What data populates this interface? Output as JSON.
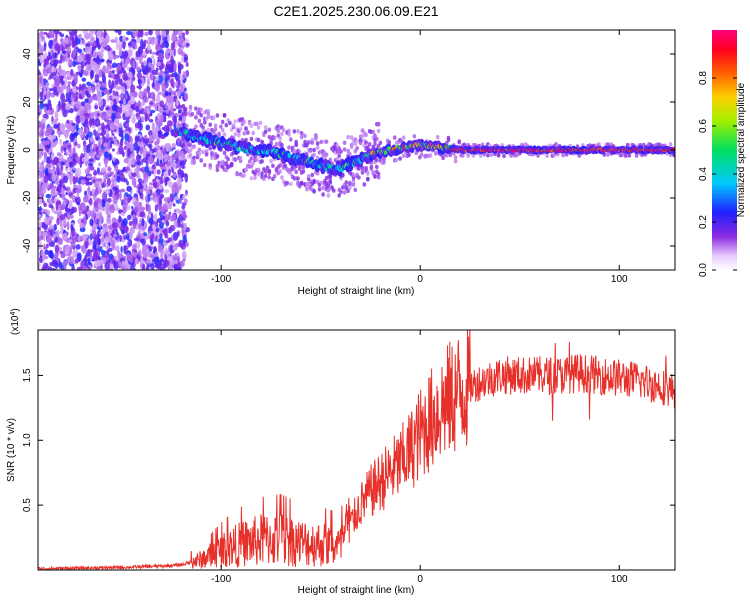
{
  "title": "C2E1.2025.230.06.09.E21",
  "chart_data": [
    {
      "type": "heatmap",
      "xlabel": "Height of straight line (km)",
      "ylabel": "Frequency (Hz)",
      "xlim": [
        -192,
        128
      ],
      "ylim": [
        -50,
        50
      ],
      "xticks": [
        -100,
        0,
        100
      ],
      "yticks": [
        -40,
        -20,
        0,
        20,
        40
      ],
      "colorbar": {
        "label": "Normalized spectral amplitude",
        "range": [
          0,
          1
        ],
        "ticks": [
          "0.0",
          "0.2",
          "0.4",
          "0.6",
          "0.8"
        ]
      },
      "ridge": {
        "x": [
          -122,
          -115,
          -105,
          -95,
          -85,
          -75,
          -65,
          -55,
          -48,
          -42,
          -35,
          -28,
          -22,
          -15,
          -8,
          0,
          10,
          20,
          40,
          60,
          80,
          100,
          128
        ],
        "y": [
          8,
          6,
          4,
          2,
          0,
          -1,
          -3,
          -5,
          -7,
          -8,
          -6,
          -3,
          -1,
          0,
          1,
          2,
          1,
          0,
          0,
          0,
          0,
          0,
          0
        ]
      },
      "noise_region_x": [
        -192,
        -117
      ]
    },
    {
      "type": "line",
      "xlabel": "Height of straight line (km)",
      "ylabel": "SNR (10 * v/v)",
      "y_multiplier": "(x10^4)",
      "xlim": [
        -192,
        128
      ],
      "ylim": [
        0,
        18500
      ],
      "xticks": [
        -100,
        0,
        100
      ],
      "yticks": [
        5000,
        10000,
        15000
      ],
      "ytick_labels": [
        "0.5",
        "1.0",
        "1.5"
      ],
      "color": "#e8302a",
      "series": [
        {
          "x": [
            -192,
            -170,
            -150,
            -130,
            -120,
            -110,
            -100,
            -90,
            -80,
            -70,
            -60,
            -50,
            -40,
            -35,
            -30,
            -25,
            -20,
            -15,
            -10,
            -5,
            0,
            5,
            10,
            20,
            30,
            40,
            50,
            60,
            70,
            80,
            90,
            100,
            110,
            120,
            128
          ],
          "y": [
            100,
            150,
            200,
            300,
            400,
            800,
            1500,
            2000,
            2300,
            2400,
            2100,
            2000,
            1800,
            3500,
            5000,
            6000,
            6800,
            7500,
            8200,
            9200,
            10500,
            11500,
            12500,
            13800,
            14500,
            15000,
            15000,
            15000,
            15000,
            15200,
            15000,
            14800,
            14600,
            14200,
            13800
          ]
        }
      ]
    }
  ]
}
